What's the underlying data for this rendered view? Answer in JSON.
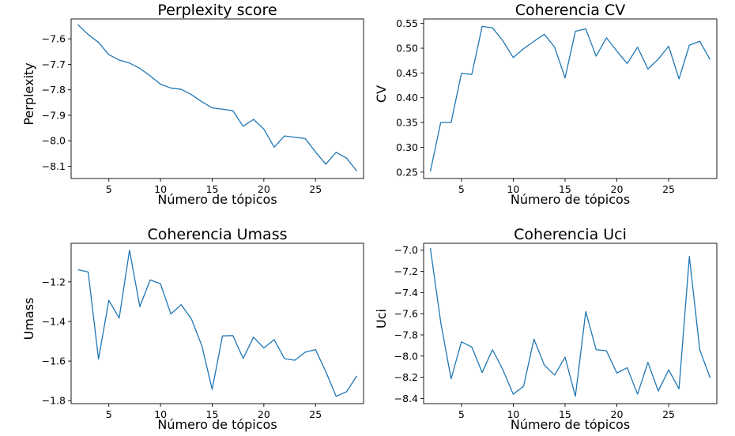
{
  "chart_data": [
    {
      "type": "line",
      "title": "Perplexity score",
      "xlabel": "Número de tópicos",
      "ylabel": "Perplexity",
      "xlim": [
        1.35,
        29.65
      ],
      "ylim": [
        -8.148,
        -7.522
      ],
      "xticks": [
        5,
        10,
        15,
        20,
        25,
        30
      ],
      "yticks": [
        -8.1,
        -8.0,
        -7.9,
        -7.8,
        -7.7,
        -7.6
      ],
      "ytick_labels": [
        "−8.1",
        "−8.0",
        "−7.9",
        "−7.8",
        "−7.7",
        "−7.6"
      ],
      "series": [
        {
          "name": "Perplexity",
          "color": "#1f77b4",
          "x": [
            2,
            3,
            4,
            5,
            6,
            7,
            8,
            9,
            10,
            11,
            12,
            13,
            14,
            15,
            16,
            17,
            18,
            19,
            20,
            21,
            22,
            23,
            24,
            25,
            26,
            27,
            28,
            29
          ],
          "y": [
            -7.544,
            -7.583,
            -7.614,
            -7.662,
            -7.683,
            -7.695,
            -7.716,
            -7.745,
            -7.778,
            -7.793,
            -7.798,
            -7.819,
            -7.847,
            -7.871,
            -7.876,
            -7.882,
            -7.943,
            -7.916,
            -7.954,
            -8.025,
            -7.981,
            -7.986,
            -7.991,
            -8.044,
            -8.092,
            -8.045,
            -8.068,
            -8.119
          ]
        }
      ]
    },
    {
      "type": "line",
      "title": "Coherencia CV",
      "xlabel": "Número de tópicos",
      "ylabel": "CV",
      "xlim": [
        1.35,
        29.65
      ],
      "ylim": [
        0.237,
        0.559
      ],
      "xticks": [
        5,
        10,
        15,
        20,
        25,
        30
      ],
      "yticks": [
        0.25,
        0.3,
        0.35,
        0.4,
        0.45,
        0.5,
        0.55
      ],
      "ytick_labels": [
        "0.25",
        "0.30",
        "0.35",
        "0.40",
        "0.45",
        "0.50",
        "0.55"
      ],
      "series": [
        {
          "name": "CV",
          "color": "#1f77b4",
          "x": [
            2,
            3,
            4,
            5,
            6,
            7,
            8,
            9,
            10,
            11,
            12,
            13,
            14,
            15,
            16,
            17,
            18,
            19,
            20,
            21,
            22,
            23,
            24,
            25,
            26,
            27,
            28,
            29
          ],
          "y": [
            0.251,
            0.35,
            0.35,
            0.449,
            0.447,
            0.544,
            0.541,
            0.515,
            0.481,
            0.499,
            0.514,
            0.528,
            0.502,
            0.44,
            0.534,
            0.539,
            0.484,
            0.521,
            0.494,
            0.469,
            0.502,
            0.458,
            0.478,
            0.504,
            0.438,
            0.506,
            0.514,
            0.477
          ]
        }
      ]
    },
    {
      "type": "line",
      "title": "Coherencia Umass",
      "xlabel": "Número de tópicos",
      "ylabel": "Umass",
      "xlim": [
        1.35,
        29.65
      ],
      "ylim": [
        -1.815,
        -1.005
      ],
      "xticks": [
        5,
        10,
        15,
        20,
        25,
        30
      ],
      "yticks": [
        -1.8,
        -1.6,
        -1.4,
        -1.2
      ],
      "ytick_labels": [
        "−1.8",
        "−1.6",
        "−1.4",
        "−1.2"
      ],
      "series": [
        {
          "name": "Umass",
          "color": "#1f77b4",
          "x": [
            2,
            3,
            4,
            5,
            6,
            7,
            8,
            9,
            10,
            11,
            12,
            13,
            14,
            15,
            16,
            17,
            18,
            19,
            20,
            21,
            22,
            23,
            24,
            25,
            26,
            27,
            28,
            29
          ],
          "y": [
            -1.138,
            -1.15,
            -1.59,
            -1.293,
            -1.383,
            -1.04,
            -1.325,
            -1.19,
            -1.21,
            -1.362,
            -1.315,
            -1.388,
            -1.523,
            -1.743,
            -1.473,
            -1.471,
            -1.587,
            -1.479,
            -1.534,
            -1.492,
            -1.588,
            -1.596,
            -1.555,
            -1.542,
            -1.654,
            -1.778,
            -1.755,
            -1.675
          ]
        }
      ]
    },
    {
      "type": "line",
      "title": "Coherencia Uci",
      "xlabel": "Número de tópicos",
      "ylabel": "Uci",
      "xlim": [
        1.35,
        29.65
      ],
      "ylim": [
        -8.449,
        -6.935
      ],
      "xticks": [
        5,
        10,
        15,
        20,
        25,
        30
      ],
      "yticks": [
        -8.4,
        -8.2,
        -8.0,
        -7.8,
        -7.6,
        -7.4,
        -7.2,
        -7.0
      ],
      "ytick_labels": [
        "−8.4",
        "−8.2",
        "−8.0",
        "−7.8",
        "−7.6",
        "−7.4",
        "−7.2",
        "−7.0"
      ],
      "series": [
        {
          "name": "Uci",
          "color": "#1f77b4",
          "x": [
            2,
            3,
            4,
            5,
            6,
            7,
            8,
            9,
            10,
            11,
            12,
            13,
            14,
            15,
            16,
            17,
            18,
            19,
            20,
            21,
            22,
            23,
            24,
            25,
            26,
            27,
            28,
            29
          ],
          "y": [
            -6.98,
            -7.68,
            -8.215,
            -7.865,
            -7.915,
            -8.155,
            -7.94,
            -8.13,
            -8.36,
            -8.285,
            -7.84,
            -8.085,
            -8.18,
            -8.01,
            -8.38,
            -7.58,
            -7.94,
            -7.95,
            -8.16,
            -8.11,
            -8.36,
            -8.06,
            -8.33,
            -8.13,
            -8.31,
            -7.06,
            -7.94,
            -8.205
          ]
        }
      ]
    }
  ]
}
